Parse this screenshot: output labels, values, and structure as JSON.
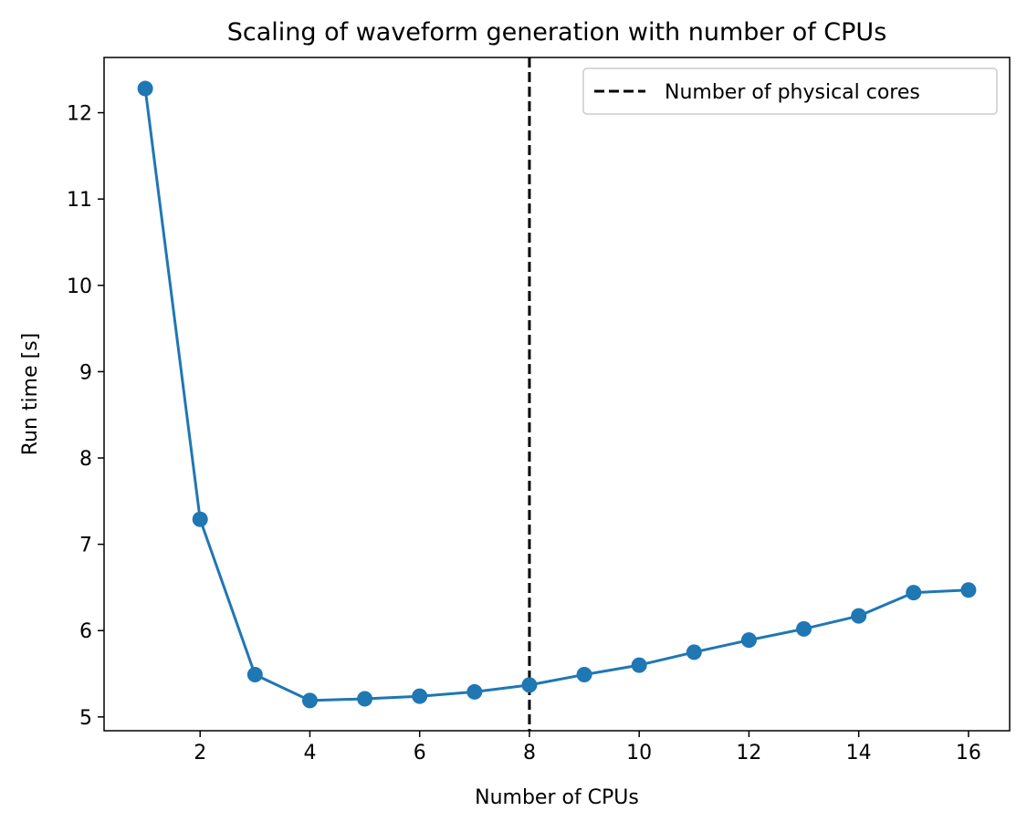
{
  "chart_data": {
    "type": "line",
    "title": "Scaling of waveform generation with number of CPUs",
    "xlabel": "Number of CPUs",
    "ylabel": "Run time [s]",
    "x": [
      1,
      2,
      3,
      4,
      5,
      6,
      7,
      8,
      9,
      10,
      11,
      12,
      13,
      14,
      15,
      16
    ],
    "series": [
      {
        "values": [
          12.28,
          7.29,
          5.49,
          5.19,
          5.21,
          5.24,
          5.29,
          5.37,
          5.49,
          5.6,
          5.75,
          5.89,
          6.02,
          6.17,
          6.44,
          6.47
        ],
        "color": "#1f77b4",
        "marker": "circle"
      }
    ],
    "xlim": [
      0.25,
      16.75
    ],
    "ylim": [
      4.84,
      12.64
    ],
    "xticks": [
      2,
      4,
      6,
      8,
      10,
      12,
      14,
      16
    ],
    "yticks": [
      5,
      6,
      7,
      8,
      9,
      10,
      11,
      12
    ],
    "vline": {
      "x": 8,
      "style": "dashed",
      "color": "#000000",
      "label": "Number of physical cores"
    },
    "grid": false,
    "legend": {
      "placement": "top-right",
      "entries": [
        "Number of physical cores"
      ]
    }
  }
}
